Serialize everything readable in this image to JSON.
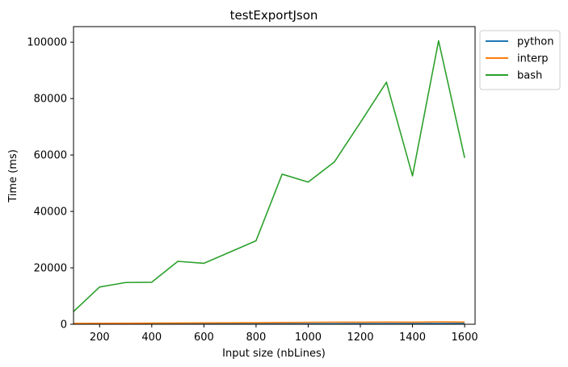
{
  "chart_data": {
    "type": "line",
    "title": "testExportJson",
    "xlabel": "Input size (nbLines)",
    "ylabel": "Time (ms)",
    "xlim": [
      100,
      1640
    ],
    "ylim": [
      0,
      105500
    ],
    "xticks": [
      200,
      400,
      600,
      800,
      1000,
      1200,
      1400,
      1600
    ],
    "yticks": [
      0,
      20000,
      40000,
      60000,
      80000,
      100000
    ],
    "grid": false,
    "legend_position": "outside-top-right",
    "x": [
      100,
      200,
      300,
      400,
      500,
      600,
      700,
      800,
      900,
      1000,
      1100,
      1200,
      1300,
      1400,
      1500,
      1600
    ],
    "series": [
      {
        "name": "python",
        "color": "#1f77b4",
        "values": [
          50,
          60,
          70,
          80,
          100,
          110,
          130,
          150,
          160,
          180,
          200,
          220,
          240,
          260,
          280,
          300
        ]
      },
      {
        "name": "interp",
        "color": "#ff7f0e",
        "values": [
          300,
          350,
          380,
          400,
          450,
          480,
          520,
          550,
          620,
          680,
          750,
          720,
          780,
          720,
          850,
          780
        ]
      },
      {
        "name": "bash",
        "color": "#2ca02c",
        "values": [
          4500,
          13200,
          14800,
          14900,
          22300,
          21600,
          25600,
          29600,
          53200,
          50400,
          57500,
          71500,
          85800,
          52600,
          100500,
          59000
        ]
      }
    ]
  }
}
